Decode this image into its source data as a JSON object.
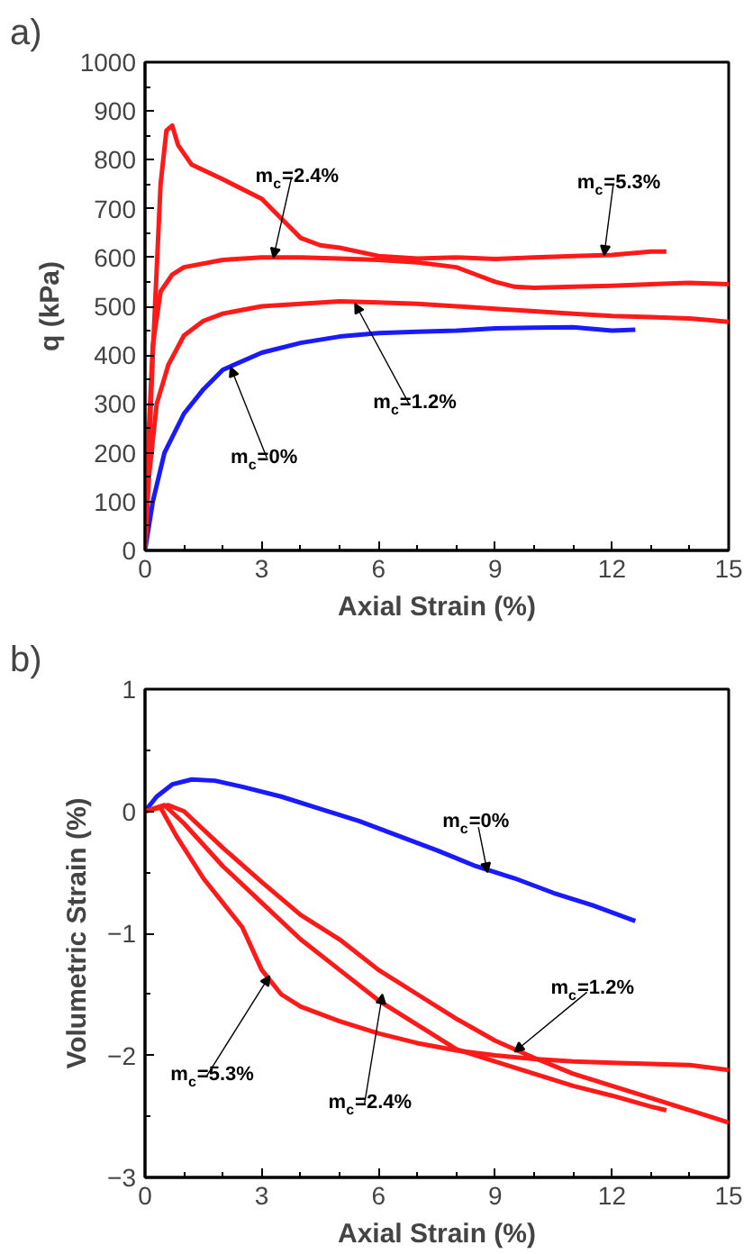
{
  "chart_data": [
    {
      "type": "line",
      "title": "a)",
      "xlabel": "Axial Strain (%)",
      "ylabel": "q (kPa)",
      "xlim": [
        0,
        15
      ],
      "ylim": [
        0,
        1000
      ],
      "xticks": [
        0,
        3,
        6,
        9,
        12,
        15
      ],
      "yticks": [
        0,
        100,
        200,
        300,
        400,
        500,
        600,
        700,
        800,
        900,
        1000
      ],
      "line_style": "solid",
      "marker": "none",
      "series": [
        {
          "color": "#1a1aff",
          "x": [
            0,
            0.2,
            0.5,
            1,
            1.5,
            2,
            3,
            4,
            5,
            6,
            7,
            8,
            9,
            10,
            11,
            12,
            12.6
          ],
          "values": [
            0,
            100,
            200,
            280,
            330,
            370,
            405,
            425,
            438,
            445,
            448,
            450,
            455,
            456,
            457,
            450,
            452
          ]
        },
        {
          "color": "#ff1a1a",
          "x": [
            0,
            0.1,
            0.3,
            0.6,
            1,
            1.5,
            2,
            3,
            4,
            5,
            6,
            7,
            8,
            9,
            10,
            11,
            12,
            13,
            14,
            15
          ],
          "values": [
            0,
            150,
            300,
            380,
            440,
            470,
            485,
            500,
            505,
            510,
            508,
            505,
            500,
            495,
            490,
            485,
            480,
            478,
            475,
            468
          ]
        },
        {
          "color": "#ff1a1a",
          "x": [
            0,
            0.1,
            0.2,
            0.4,
            0.7,
            1,
            2,
            3,
            4,
            5,
            6,
            7,
            8,
            8.5,
            9,
            9.5,
            10,
            11,
            12,
            13,
            14,
            15
          ],
          "values": [
            0,
            250,
            420,
            530,
            565,
            580,
            595,
            600,
            600,
            598,
            595,
            590,
            580,
            565,
            550,
            540,
            538,
            540,
            542,
            545,
            548,
            545
          ]
        },
        {
          "color": "#ff1a1a",
          "x": [
            0,
            0.2,
            0.4,
            0.55,
            0.7,
            0.85,
            1.2,
            2,
            3,
            3.5,
            4,
            4.5,
            5,
            6,
            7,
            8,
            9,
            10,
            11,
            12,
            13,
            13.4
          ],
          "values": [
            0,
            400,
            750,
            860,
            870,
            830,
            790,
            760,
            720,
            680,
            640,
            625,
            620,
            603,
            598,
            600,
            597,
            600,
            603,
            605,
            612,
            612
          ]
        }
      ],
      "annotations": [
        {
          "text": "m$_{c}$=2.4%",
          "x": 3.3,
          "y": 600
        },
        {
          "text": "m$_{c}$=5.3%",
          "x": 11.8,
          "y": 605
        },
        {
          "text": "m$_{c}$=1.2%",
          "x": 5.4,
          "y": 505
        },
        {
          "text": "m$_{c}$=0%",
          "x": 2.2,
          "y": 375
        }
      ]
    },
    {
      "type": "line",
      "title": "b)",
      "xlabel": "Axial Strain (%)",
      "ylabel": "Volumetric Strain (%)",
      "xlim": [
        0,
        15
      ],
      "ylim": [
        -3,
        1
      ],
      "xticks": [
        0,
        3,
        6,
        9,
        12,
        15
      ],
      "yticks": [
        -3,
        -2,
        -1,
        0,
        1
      ],
      "line_style": "solid",
      "marker": "none",
      "series": [
        {
          "color": "#1a1aff",
          "x": [
            0,
            0.3,
            0.7,
            1.2,
            1.8,
            2.5,
            3.5,
            4.5,
            5.5,
            6.5,
            7.5,
            8.5,
            9.5,
            10.5,
            11.5,
            12.6
          ],
          "values": [
            0,
            0.12,
            0.22,
            0.26,
            0.25,
            0.2,
            0.12,
            0.02,
            -0.08,
            -0.2,
            -0.32,
            -0.45,
            -0.55,
            -0.67,
            -0.77,
            -0.9
          ]
        },
        {
          "color": "#ff1a1a",
          "x": [
            0,
            0.6,
            1,
            2,
            3,
            4,
            5,
            6,
            7,
            8,
            9,
            10,
            11,
            12,
            13,
            14,
            15
          ],
          "values": [
            0,
            0.05,
            0,
            -0.3,
            -0.58,
            -0.85,
            -1.05,
            -1.3,
            -1.5,
            -1.7,
            -1.88,
            -2.02,
            -2.15,
            -2.25,
            -2.35,
            -2.45,
            -2.55
          ]
        },
        {
          "color": "#ff1a1a",
          "x": [
            0,
            0.5,
            1,
            2,
            3,
            4,
            5,
            6,
            7,
            8,
            9,
            10,
            11,
            12,
            13,
            13.4
          ],
          "values": [
            0,
            0.05,
            -0.1,
            -0.45,
            -0.75,
            -1.05,
            -1.3,
            -1.55,
            -1.75,
            -1.95,
            -2.05,
            -2.15,
            -2.25,
            -2.33,
            -2.42,
            -2.45
          ]
        },
        {
          "color": "#ff1a1a",
          "x": [
            0,
            0.4,
            0.8,
            1.5,
            2,
            2.5,
            3,
            3.5,
            4,
            5,
            6,
            7,
            8,
            9,
            10,
            11,
            12,
            13,
            14,
            15
          ],
          "values": [
            0,
            0.03,
            -0.2,
            -0.55,
            -0.75,
            -0.95,
            -1.3,
            -1.5,
            -1.6,
            -1.72,
            -1.82,
            -1.9,
            -1.96,
            -2.0,
            -2.03,
            -2.05,
            -2.06,
            -2.07,
            -2.08,
            -2.12
          ]
        }
      ],
      "annotations": [
        {
          "text": "m$_{c}$=0%",
          "x": 8.8,
          "y": -0.5
        },
        {
          "text": "m$_{c}$=1.2%",
          "x": 9.5,
          "y": -1.97
        },
        {
          "text": "m$_{c}$=5.3%",
          "x": 3.2,
          "y": -1.35
        },
        {
          "text": "m$_{c}$=2.4%",
          "x": 6.1,
          "y": -1.5
        }
      ]
    }
  ]
}
